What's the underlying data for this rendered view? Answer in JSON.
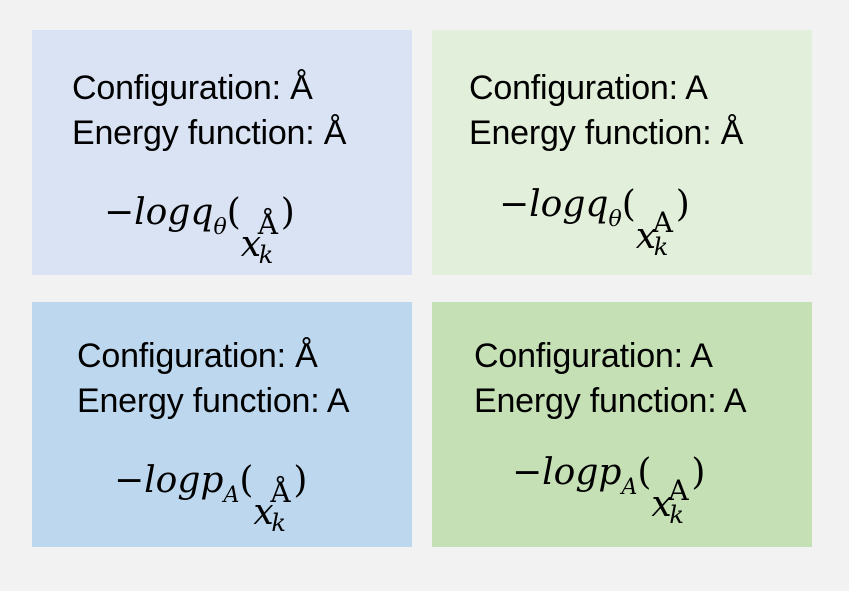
{
  "colors": {
    "background": "#f2f2f2",
    "panel_top_left": "#dae3f3",
    "panel_top_right": "#e2efda",
    "panel_bottom_left": "#bdd7ee",
    "panel_bottom_right": "#c5e0b4"
  },
  "panels": [
    {
      "configuration": "Configuration: Å",
      "energy": "Energy function: Å",
      "formula": {
        "minus": "−",
        "log": "log",
        "fn": "q",
        "sub": "θ",
        "open": "(",
        "x": "x",
        "sup": "Å",
        "k": "k",
        "close": ")"
      }
    },
    {
      "configuration": "Configuration: A",
      "energy": "Energy function: Å",
      "formula": {
        "minus": "−",
        "log": "log",
        "fn": "q",
        "sub": "θ",
        "open": "(",
        "x": "x",
        "sup": "A",
        "k": "k",
        "close": ")"
      }
    },
    {
      "configuration": "Configuration: Å",
      "energy": "Energy function: A",
      "formula": {
        "minus": "−",
        "log": "log",
        "fn": "p",
        "sub": "A",
        "open": "(",
        "x": "x",
        "sup": "Å",
        "k": "k",
        "close": ")"
      }
    },
    {
      "configuration": "Configuration: A",
      "energy": "Energy function: A",
      "formula": {
        "minus": "−",
        "log": "log",
        "fn": "p",
        "sub": "A",
        "open": "(",
        "x": "x",
        "sup": "A",
        "k": "k",
        "close": ")"
      }
    }
  ]
}
